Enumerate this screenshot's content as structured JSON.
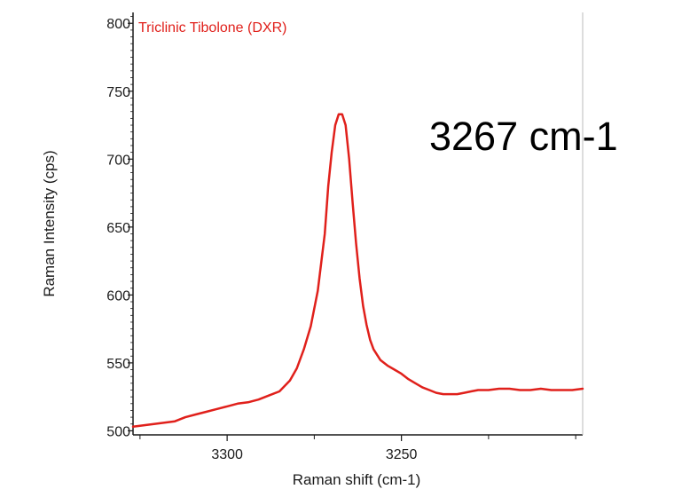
{
  "chart_data": {
    "type": "line",
    "title": "",
    "xlabel": "Raman shift (cm-1)",
    "ylabel": "Raman Intensity (cps)",
    "x_reversed": true,
    "xlim": [
      3327,
      3198
    ],
    "ylim": [
      497,
      808
    ],
    "xticks_major": [
      3300,
      3250
    ],
    "xticks_minor": [
      3325,
      3275,
      3225,
      3200
    ],
    "yticks": [
      500,
      550,
      600,
      650,
      700,
      750,
      800
    ],
    "grid": false,
    "series_label": "Triclinic Tibolone (DXR)",
    "series_color": "#e0201b",
    "annotation": "3267 cm-1",
    "series": [
      {
        "name": "Triclinic Tibolone (DXR)",
        "x": [
          3327,
          3324,
          3321,
          3318,
          3315,
          3312,
          3309,
          3306,
          3303,
          3300,
          3297,
          3294,
          3291,
          3288,
          3285,
          3282,
          3280,
          3278,
          3276,
          3274,
          3272,
          3271,
          3270,
          3269,
          3268,
          3267,
          3266,
          3265,
          3264,
          3263,
          3262,
          3261,
          3260,
          3259,
          3258,
          3256,
          3254,
          3252,
          3250,
          3248,
          3246,
          3244,
          3242,
          3240,
          3238,
          3236,
          3234,
          3232,
          3230,
          3228,
          3225,
          3222,
          3219,
          3216,
          3213,
          3210,
          3207,
          3204,
          3201,
          3198
        ],
        "y": [
          503,
          504,
          505,
          506,
          507,
          510,
          512,
          514,
          516,
          518,
          520,
          521,
          523,
          526,
          529,
          537,
          546,
          560,
          577,
          603,
          645,
          680,
          705,
          725,
          733,
          733,
          725,
          700,
          668,
          638,
          612,
          592,
          578,
          567,
          560,
          552,
          548,
          545,
          542,
          538,
          535,
          532,
          530,
          528,
          527,
          527,
          527,
          528,
          529,
          530,
          530,
          531,
          531,
          530,
          530,
          531,
          530,
          530,
          530,
          531
        ]
      }
    ]
  }
}
